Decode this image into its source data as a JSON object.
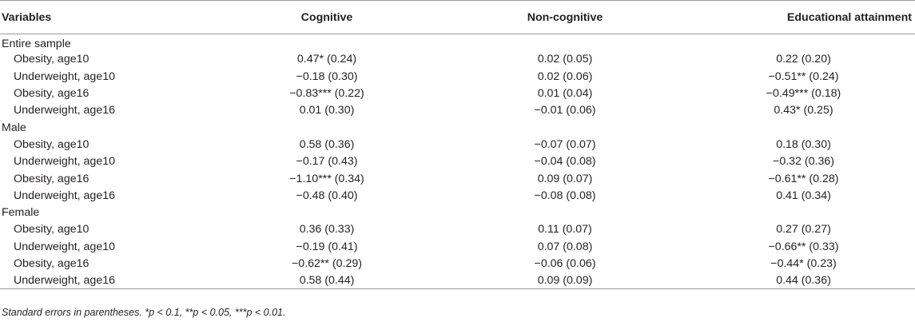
{
  "header": {
    "variables": "Variables",
    "cognitive": "Cognitive",
    "non_cognitive": "Non-cognitive",
    "educational_attainment": "Educational attainment"
  },
  "groups": [
    {
      "label": "Entire sample",
      "rows": [
        {
          "variable": "Obesity, age10",
          "cognitive": "0.47* (0.24)",
          "non_cognitive": "0.02 (0.05)",
          "educational_attainment": "0.22 (0.20)"
        },
        {
          "variable": "Underweight, age10",
          "cognitive": "−0.18 (0.30)",
          "non_cognitive": "0.02 (0.06)",
          "educational_attainment": "−0.51** (0.24)"
        },
        {
          "variable": "Obesity, age16",
          "cognitive": "−0.83*** (0.22)",
          "non_cognitive": "0.01 (0.04)",
          "educational_attainment": "−0.49*** (0.18)"
        },
        {
          "variable": "Underweight, age16",
          "cognitive": "0.01 (0.30)",
          "non_cognitive": "−0.01 (0.06)",
          "educational_attainment": "0.43* (0.25)"
        }
      ]
    },
    {
      "label": "Male",
      "rows": [
        {
          "variable": "Obesity, age10",
          "cognitive": "0.58 (0.36)",
          "non_cognitive": "−0.07 (0.07)",
          "educational_attainment": "0.18 (0.30)"
        },
        {
          "variable": "Underweight, age10",
          "cognitive": "−0.17 (0.43)",
          "non_cognitive": "−0.04 (0.08)",
          "educational_attainment": "−0.32 (0.36)"
        },
        {
          "variable": "Obesity, age16",
          "cognitive": "−1.10*** (0.34)",
          "non_cognitive": "0.09 (0.07)",
          "educational_attainment": "−0.61** (0.28)"
        },
        {
          "variable": "Underweight, age16",
          "cognitive": "−0.48 (0.40)",
          "non_cognitive": "−0.08 (0.08)",
          "educational_attainment": "0.41 (0.34)"
        }
      ]
    },
    {
      "label": "Female",
      "rows": [
        {
          "variable": "Obesity, age10",
          "cognitive": "0.36 (0.33)",
          "non_cognitive": "0.11 (0.07)",
          "educational_attainment": "0.27 (0.27)"
        },
        {
          "variable": "Underweight, age10",
          "cognitive": "−0.19 (0.41)",
          "non_cognitive": "0.07 (0.08)",
          "educational_attainment": "−0.66** (0.33)"
        },
        {
          "variable": "Obesity, age16",
          "cognitive": "−0.62** (0.29)",
          "non_cognitive": "−0.06 (0.06)",
          "educational_attainment": "−0.44* (0.23)"
        },
        {
          "variable": "Underweight, age16",
          "cognitive": "0.58 (0.44)",
          "non_cognitive": "0.09 (0.09)",
          "educational_attainment": "0.44 (0.36)"
        }
      ]
    }
  ],
  "footnote": "Standard errors in parentheses. *p < 0.1, **p < 0.05, ***p < 0.01."
}
